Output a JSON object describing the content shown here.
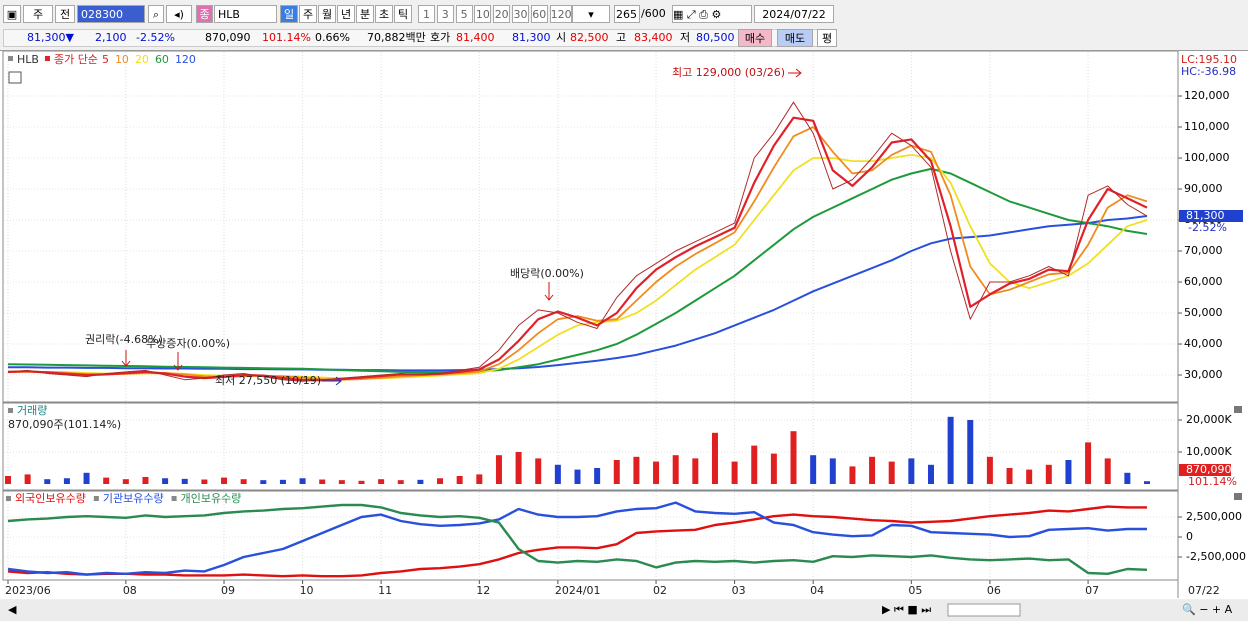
{
  "toolbar": {
    "period": "주",
    "prev": "전",
    "code": "028300",
    "market": "종",
    "name": "HLB",
    "units": [
      "일",
      "주",
      "월",
      "년",
      "분",
      "초",
      "틱"
    ],
    "intervals": [
      "1",
      "3",
      "5",
      "10",
      "20",
      "30",
      "60",
      "120"
    ],
    "count": "265",
    "max_count": "/600",
    "date": "2024/07/22"
  },
  "quote": {
    "price": "81,300▼",
    "change": "2,100",
    "change_rate": "-2.52%",
    "volume": "870,090",
    "volume_rate": "101.14%",
    "turnover": "0.66%",
    "amount": "70,882백만",
    "ask_label": "호가",
    "ask": "81,400",
    "bid": "81,300",
    "open_label": "시",
    "open": "82,500",
    "high_label": "고",
    "high": "83,400",
    "low_label": "저",
    "low": "80,500",
    "buy": "매수",
    "sell": "매도",
    "avg": "평"
  },
  "chart_data": [
    {
      "type": "line",
      "legend_title": "종가 단순",
      "ylim": [
        21300,
        134200
      ],
      "yticks": [
        {
          "value": 30000,
          "label": "30,000"
        },
        {
          "value": 40000,
          "label": "40,000"
        },
        {
          "value": 50000,
          "label": "50,000"
        },
        {
          "value": 60000,
          "label": "60,000"
        },
        {
          "value": 70000,
          "label": "70,000"
        },
        {
          "value": 80000,
          "label": "80,000"
        },
        {
          "value": 90000,
          "label": "90,000"
        },
        {
          "value": 100000,
          "label": "100,000"
        },
        {
          "value": 110000,
          "label": "110,000"
        },
        {
          "value": 120000,
          "label": "120,000"
        }
      ],
      "lc": "LC:195.10",
      "hc": "HC:-36.98",
      "current_label": "81,300",
      "current_change": "-2.52%",
      "annotations": [
        "최고 129,000 (03/26)",
        "배당락(0.00%)",
        "권리락(-4.68%)",
        "무상증자(0.00%)",
        "최저 27,550 (10/19)"
      ],
      "series": [
        {
          "name": "HLB",
          "color": "#b02a2a",
          "values": [
            31000,
            31500,
            30500,
            30000,
            29500,
            30500,
            31000,
            31500,
            30000,
            28500,
            29000,
            30000,
            30500,
            29500,
            28500,
            28000,
            28500,
            29000,
            29500,
            30000,
            30500,
            30000,
            30500,
            31500,
            32500,
            38000,
            46000,
            51000,
            50000,
            47000,
            45000,
            55000,
            62000,
            66000,
            70000,
            73000,
            76000,
            79000,
            100000,
            108000,
            118000,
            108000,
            90000,
            93000,
            100000,
            108000,
            104000,
            97000,
            70000,
            48000,
            60000,
            60000,
            62000,
            65000,
            62000,
            88000,
            91000,
            85000,
            81300
          ]
        },
        {
          "name": "5",
          "color": "#e0202a",
          "values": [
            31000,
            31200,
            30800,
            30400,
            30000,
            30200,
            30600,
            31000,
            30500,
            29500,
            29000,
            29400,
            30000,
            29800,
            29000,
            28400,
            28300,
            28700,
            29200,
            29700,
            30200,
            30200,
            30400,
            31000,
            31800,
            35000,
            41000,
            48000,
            50500,
            48500,
            46000,
            50000,
            58000,
            64000,
            68000,
            71500,
            74500,
            77500,
            92000,
            104000,
            113000,
            112000,
            96000,
            91000,
            97000,
            105000,
            106000,
            99000,
            78000,
            52000,
            56000,
            59500,
            61000,
            64000,
            63500,
            80000,
            90000,
            87000,
            84000
          ]
        },
        {
          "name": "10",
          "color": "#f08c1e",
          "values": [
            31000,
            31100,
            31000,
            30700,
            30300,
            30200,
            30400,
            30700,
            30700,
            30200,
            29600,
            29400,
            29600,
            29800,
            29600,
            29100,
            28700,
            28500,
            28700,
            29100,
            29600,
            29900,
            30200,
            30600,
            31100,
            33500,
            38000,
            43500,
            48000,
            49000,
            47500,
            48000,
            54000,
            60000,
            65000,
            69000,
            72500,
            76000,
            86000,
            97000,
            107000,
            110000,
            102000,
            95000,
            96000,
            101000,
            104000,
            102000,
            88000,
            65000,
            56000,
            57500,
            60000,
            62500,
            63000,
            72000,
            84000,
            88000,
            86000
          ]
        },
        {
          "name": "20",
          "color": "#f0e020",
          "values": [
            31000,
            31000,
            31000,
            30900,
            30700,
            30500,
            30400,
            30500,
            30600,
            30400,
            30000,
            29800,
            29700,
            29700,
            29700,
            29500,
            29200,
            28900,
            28800,
            28900,
            29200,
            29500,
            29800,
            30200,
            30600,
            32000,
            35000,
            39000,
            43000,
            46000,
            47000,
            47500,
            50000,
            54000,
            59000,
            64000,
            68000,
            72000,
            80000,
            88000,
            96000,
            100000,
            100000,
            99000,
            99000,
            100000,
            101000,
            100000,
            92000,
            78000,
            66000,
            60000,
            58000,
            60000,
            62000,
            66000,
            72000,
            78000,
            80000
          ]
        },
        {
          "name": "60",
          "color": "#1e9a3c",
          "values": [
            33500,
            33400,
            33300,
            33200,
            33100,
            33000,
            32900,
            32800,
            32700,
            32600,
            32500,
            32400,
            32300,
            32200,
            32100,
            32000,
            31800,
            31600,
            31400,
            31200,
            31000,
            30900,
            30900,
            31000,
            31200,
            31600,
            32500,
            33500,
            35000,
            36500,
            38000,
            40000,
            43000,
            46500,
            50000,
            54000,
            58000,
            62000,
            67000,
            72000,
            77000,
            81000,
            84000,
            87000,
            90000,
            93000,
            95000,
            96500,
            95000,
            92000,
            89000,
            86000,
            84000,
            82000,
            80000,
            79000,
            78000,
            76500,
            75500
          ]
        },
        {
          "name": "120",
          "color": "#2850dc",
          "values": [
            32500,
            32500,
            32400,
            32400,
            32300,
            32300,
            32200,
            32200,
            32100,
            32100,
            32000,
            32000,
            31900,
            31900,
            31800,
            31800,
            31700,
            31700,
            31600,
            31600,
            31500,
            31500,
            31500,
            31600,
            31700,
            31900,
            32200,
            32600,
            33200,
            33900,
            34600,
            35500,
            36500,
            38000,
            39500,
            41500,
            43500,
            46000,
            48500,
            51000,
            54000,
            57000,
            59500,
            62000,
            64500,
            67000,
            70000,
            72500,
            74000,
            74500,
            75000,
            76000,
            77000,
            78000,
            78500,
            79000,
            80000,
            80500,
            81300
          ]
        }
      ]
    },
    {
      "type": "bar",
      "title": "거래량",
      "subtitle": "870,090주(101.14%)",
      "up_color": "#e02020",
      "down_color": "#2040d0",
      "ylim": [
        0,
        25000000
      ],
      "yticks": [
        {
          "value": 10000000,
          "label": "10,000K"
        },
        {
          "value": 20000000,
          "label": "20,000K"
        }
      ],
      "current_label": "870,090",
      "current_rate": "101.14%",
      "values": [
        2500000,
        3000000,
        1500000,
        1800000,
        3500000,
        2000000,
        1500000,
        2200000,
        1800000,
        1600000,
        1400000,
        2000000,
        1500000,
        1200000,
        1300000,
        1800000,
        1400000,
        1200000,
        1000000,
        1500000,
        1200000,
        1300000,
        1800000,
        2500000,
        3000000,
        9000000,
        10000000,
        8000000,
        6000000,
        4500000,
        5000000,
        7500000,
        8500000,
        7000000,
        9000000,
        8000000,
        16000000,
        7000000,
        12000000,
        9500000,
        16500000,
        9000000,
        8000000,
        5500000,
        8500000,
        7000000,
        8000000,
        6000000,
        21000000,
        20000000,
        8500000,
        5000000,
        4500000,
        6000000,
        7500000,
        13000000,
        8000000,
        3500000,
        870090
      ]
    },
    {
      "type": "line",
      "ylim": [
        -5375000,
        5625000
      ],
      "yticks": [
        {
          "value": -2500000,
          "label": "-2,500,000"
        },
        0,
        {
          "value": 2500000,
          "label": "2,500,000"
        }
      ],
      "categories": [
        "2023/06",
        null,
        null,
        null,
        null,
        null,
        "08",
        null,
        null,
        null,
        null,
        "09",
        null,
        null,
        null,
        "10",
        null,
        null,
        null,
        "11",
        null,
        null,
        null,
        null,
        "12",
        null,
        null,
        null,
        "2024/01",
        null,
        null,
        null,
        null,
        "02",
        null,
        null,
        null,
        "03",
        null,
        null,
        null,
        "04",
        null,
        null,
        null,
        null,
        "05",
        null,
        null,
        null,
        "06",
        null,
        null,
        null,
        null,
        "07",
        null,
        null,
        null
      ],
      "x_end_label": "07/22",
      "series": [
        {
          "name": "외국인보유수량",
          "color": "#e01010",
          "values": [
            -4300000,
            -4500000,
            -4400000,
            -4600000,
            -4700000,
            -4600000,
            -4600000,
            -4700000,
            -4700000,
            -4800000,
            -4800000,
            -4800000,
            -4700000,
            -4800000,
            -4900000,
            -4800000,
            -4900000,
            -4900000,
            -4800000,
            -4500000,
            -4300000,
            -4000000,
            -3900000,
            -3700000,
            -3400000,
            -2800000,
            -2000000,
            -1600000,
            -1300000,
            -1300000,
            -1400000,
            -900000,
            500000,
            700000,
            800000,
            900000,
            1500000,
            1800000,
            2200000,
            2600000,
            2800000,
            2600000,
            2500000,
            2300000,
            2100000,
            2000000,
            1800000,
            1900000,
            2000000,
            2300000,
            2600000,
            2800000,
            3000000,
            3300000,
            3200000,
            3500000,
            3800000,
            3700000,
            3700000
          ]
        },
        {
          "name": "기관보유수량",
          "color": "#2850dc",
          "values": [
            -4000000,
            -4300000,
            -4500000,
            -4400000,
            -4700000,
            -4500000,
            -4600000,
            -4400000,
            -4500000,
            -4200000,
            -4300000,
            -3500000,
            -2500000,
            -2000000,
            -1500000,
            -500000,
            500000,
            1500000,
            2500000,
            2800000,
            2000000,
            1600000,
            1400000,
            1500000,
            1700000,
            2200000,
            3500000,
            2800000,
            2500000,
            2500000,
            2600000,
            3200000,
            3500000,
            3600000,
            4300000,
            3200000,
            3000000,
            2900000,
            3100000,
            1800000,
            1500000,
            600000,
            300000,
            100000,
            200000,
            1500000,
            1400000,
            600000,
            500000,
            400000,
            300000,
            0,
            100000,
            900000,
            1000000,
            1100000,
            800000,
            1000000,
            1000000
          ]
        },
        {
          "name": "개인보유수량",
          "color": "#2a8a50",
          "values": [
            2000000,
            2200000,
            2300000,
            2500000,
            2600000,
            2500000,
            2400000,
            2700000,
            2500000,
            2600000,
            2700000,
            3000000,
            3200000,
            3300000,
            3500000,
            3600000,
            3800000,
            4000000,
            4000000,
            3700000,
            3000000,
            2700000,
            2500000,
            2600000,
            2400000,
            1800000,
            -1500000,
            -3000000,
            -3200000,
            -3000000,
            -3100000,
            -2800000,
            -3000000,
            -3800000,
            -3200000,
            -3000000,
            -3100000,
            -3000000,
            -3200000,
            -3000000,
            -2900000,
            -3100000,
            -2400000,
            -2500000,
            -2300000,
            -2400000,
            -2500000,
            -2300000,
            -2600000,
            -2800000,
            -2900000,
            -2800000,
            -2700000,
            -2900000,
            -2800000,
            -4500000,
            -4600000,
            -4000000,
            -4100000
          ]
        }
      ]
    }
  ]
}
